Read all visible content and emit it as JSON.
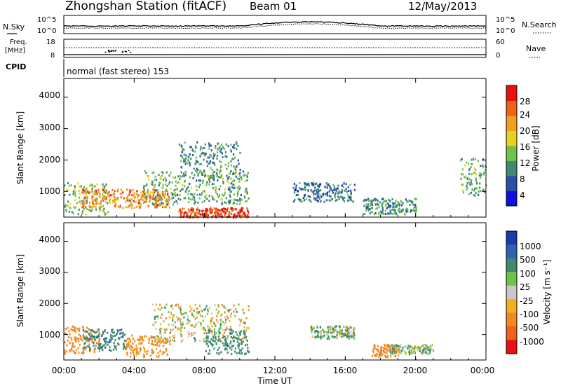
{
  "header": {
    "station_title": "Zhongshan Station (fitACF)",
    "beam": "Beam 01",
    "date": "12/May/2013"
  },
  "noise_panel": {
    "left_label": "N.Sky",
    "right_label": "N.Search",
    "left_ticks": [
      "10^5",
      "10^0"
    ],
    "right_ticks": [
      "10^5",
      "10^0"
    ]
  },
  "freq_panel": {
    "left_label_line1": "Freq.",
    "left_label_line2": "[MHz]",
    "right_label": "Nave",
    "left_ticks": [
      "18",
      "8"
    ],
    "right_ticks": [
      "60",
      "0"
    ]
  },
  "cpid": {
    "label": "CPID",
    "mode_text": "normal (fast stereo) 153"
  },
  "axes": {
    "ylabel": "Slant Range [km]",
    "xlabel": "Time UT",
    "y_ticks": [
      "1000",
      "2000",
      "3000",
      "4000"
    ],
    "x_ticks": [
      "00:00",
      "04:00",
      "08:00",
      "12:00",
      "16:00",
      "20:00",
      "00:00"
    ]
  },
  "power_colorbar": {
    "label": "Power [dB]",
    "ticks": [
      "4",
      "8",
      "12",
      "16",
      "20",
      "24",
      "28"
    ],
    "colors": [
      "#1010e6",
      "#2a4fa8",
      "#3e8a70",
      "#6fc24a",
      "#e8d21c",
      "#f0a020",
      "#f06018",
      "#e81010"
    ]
  },
  "velocity_colorbar": {
    "label": "Velocity [m s⁻¹]",
    "ticks": [
      "1000",
      "500",
      "100",
      "25",
      "-25",
      "-100",
      "-500",
      "-1000"
    ],
    "colors": [
      "#1c3aa8",
      "#2c62b0",
      "#3e8a70",
      "#6fc24a",
      "#c8c8c8",
      "#f0b020",
      "#f08a20",
      "#f06018",
      "#e81010"
    ]
  },
  "chart_data": [
    {
      "type": "heatmap",
      "title": "Power",
      "xlabel": "Time UT",
      "ylabel": "Slant Range [km]",
      "xlim": [
        0,
        24
      ],
      "ylim": [
        180,
        4600
      ],
      "colorbar_label": "Power [dB]",
      "colorbar_range": [
        0,
        30
      ],
      "regions": [
        {
          "t_start": 0.0,
          "t_end": 2.5,
          "range_low": 300,
          "range_high": 1300,
          "value_db": 14
        },
        {
          "t_start": 1.0,
          "t_end": 6.0,
          "range_low": 500,
          "range_high": 1100,
          "value_db": 24
        },
        {
          "t_start": 4.5,
          "t_end": 10.5,
          "range_low": 600,
          "range_high": 1700,
          "value_db": 12
        },
        {
          "t_start": 6.5,
          "t_end": 10.0,
          "range_low": 1500,
          "range_high": 2600,
          "value_db": 10
        },
        {
          "t_start": 6.5,
          "t_end": 10.5,
          "range_low": 200,
          "range_high": 500,
          "value_db": 28
        },
        {
          "t_start": 13.0,
          "t_end": 16.5,
          "range_low": 700,
          "range_high": 1300,
          "value_db": 8
        },
        {
          "t_start": 17.0,
          "t_end": 20.0,
          "range_low": 300,
          "range_high": 800,
          "value_db": 10
        },
        {
          "t_start": 22.5,
          "t_end": 24.0,
          "range_low": 900,
          "range_high": 2100,
          "value_db": 12
        }
      ]
    },
    {
      "type": "heatmap",
      "title": "Velocity",
      "xlabel": "Time UT",
      "ylabel": "Slant Range [km]",
      "xlim": [
        0,
        24
      ],
      "ylim": [
        180,
        4600
      ],
      "colorbar_label": "Velocity [m s⁻¹]",
      "colorbar_range": [
        -1000,
        1000
      ],
      "regions": [
        {
          "t_start": 0.0,
          "t_end": 2.0,
          "range_low": 400,
          "range_high": 1300,
          "value_ms": -300
        },
        {
          "t_start": 1.0,
          "t_end": 3.5,
          "range_low": 500,
          "range_high": 1200,
          "value_ms": 400
        },
        {
          "t_start": 3.5,
          "t_end": 6.0,
          "range_low": 300,
          "range_high": 1000,
          "value_ms": -200
        },
        {
          "t_start": 5.0,
          "t_end": 10.5,
          "range_low": 800,
          "range_high": 2000,
          "value_ms": 0
        },
        {
          "t_start": 8.0,
          "t_end": 10.5,
          "range_low": 400,
          "range_high": 1200,
          "value_ms": 300
        },
        {
          "t_start": 14.0,
          "t_end": 16.5,
          "range_low": 900,
          "range_high": 1300,
          "value_ms": 80
        },
        {
          "t_start": 17.5,
          "t_end": 19.0,
          "range_low": 300,
          "range_high": 700,
          "value_ms": -400
        },
        {
          "t_start": 18.5,
          "t_end": 21.0,
          "range_low": 400,
          "range_high": 700,
          "value_ms": 60
        }
      ]
    }
  ]
}
